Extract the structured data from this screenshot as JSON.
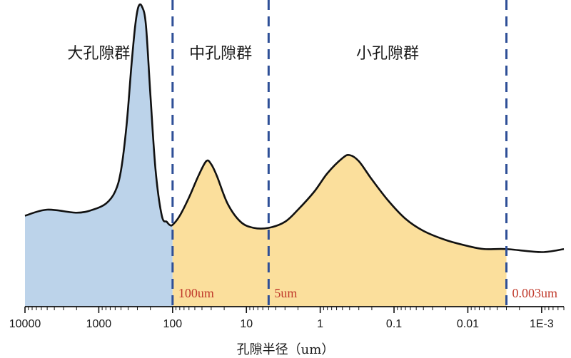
{
  "chart_data": {
    "type": "area",
    "xlabel": "孔隙半径（um）",
    "ylabel": "",
    "x_scale": "log",
    "x_reversed": true,
    "xlim": [
      10000,
      0.0005
    ],
    "ylim": [
      0,
      1
    ],
    "x_ticks": [
      {
        "value": 10000,
        "label": "10000"
      },
      {
        "value": 1000,
        "label": "1000"
      },
      {
        "value": 100,
        "label": "100"
      },
      {
        "value": 10,
        "label": "10"
      },
      {
        "value": 1,
        "label": "1"
      },
      {
        "value": 0.1,
        "label": "0.1"
      },
      {
        "value": 0.01,
        "label": "0.01"
      },
      {
        "value": 0.001,
        "label": "1E-3"
      }
    ],
    "boundaries": [
      {
        "value": 100,
        "label": "100um"
      },
      {
        "value": 5,
        "label": "5um"
      },
      {
        "value": 0.003,
        "label": "0.003um"
      }
    ],
    "regions": [
      {
        "label": "大孔隙群",
        "from": 10000,
        "to": 100,
        "color": "#bcd3ea"
      },
      {
        "label": "中孔隙群",
        "from": 100,
        "to": 5,
        "color": "#fbdf9c"
      },
      {
        "label": "小孔隙群",
        "from": 5,
        "to": 0.003,
        "color": "#fbdf9c"
      }
    ],
    "series": [
      {
        "x": [
          10000,
          5000,
          2000,
          1200,
          800,
          600,
          500,
          420,
          360,
          320,
          290,
          260,
          230,
          200,
          170,
          140,
          120,
          110,
          100,
          80,
          60,
          45,
          35,
          30,
          25,
          18,
          12,
          8,
          5,
          3,
          2,
          1.2,
          0.8,
          0.5,
          0.4,
          0.3,
          0.2,
          0.12,
          0.07,
          0.04,
          0.02,
          0.01,
          0.006,
          0.003,
          0.001,
          0.0005
        ],
        "y": [
          0.3,
          0.32,
          0.31,
          0.32,
          0.34,
          0.38,
          0.45,
          0.6,
          0.8,
          0.93,
          0.99,
          0.99,
          0.93,
          0.7,
          0.45,
          0.3,
          0.28,
          0.27,
          0.27,
          0.3,
          0.36,
          0.43,
          0.48,
          0.47,
          0.43,
          0.34,
          0.28,
          0.26,
          0.26,
          0.28,
          0.32,
          0.38,
          0.44,
          0.49,
          0.5,
          0.48,
          0.42,
          0.35,
          0.29,
          0.25,
          0.22,
          0.2,
          0.19,
          0.19,
          0.18,
          0.19
        ]
      }
    ],
    "colors": {
      "macro_fill": "#bcd3ea",
      "meso_fill": "#fbdf9c",
      "curve": "#111111",
      "boundary_line": "#2e4f97",
      "boundary_text": "#c0392b"
    }
  }
}
